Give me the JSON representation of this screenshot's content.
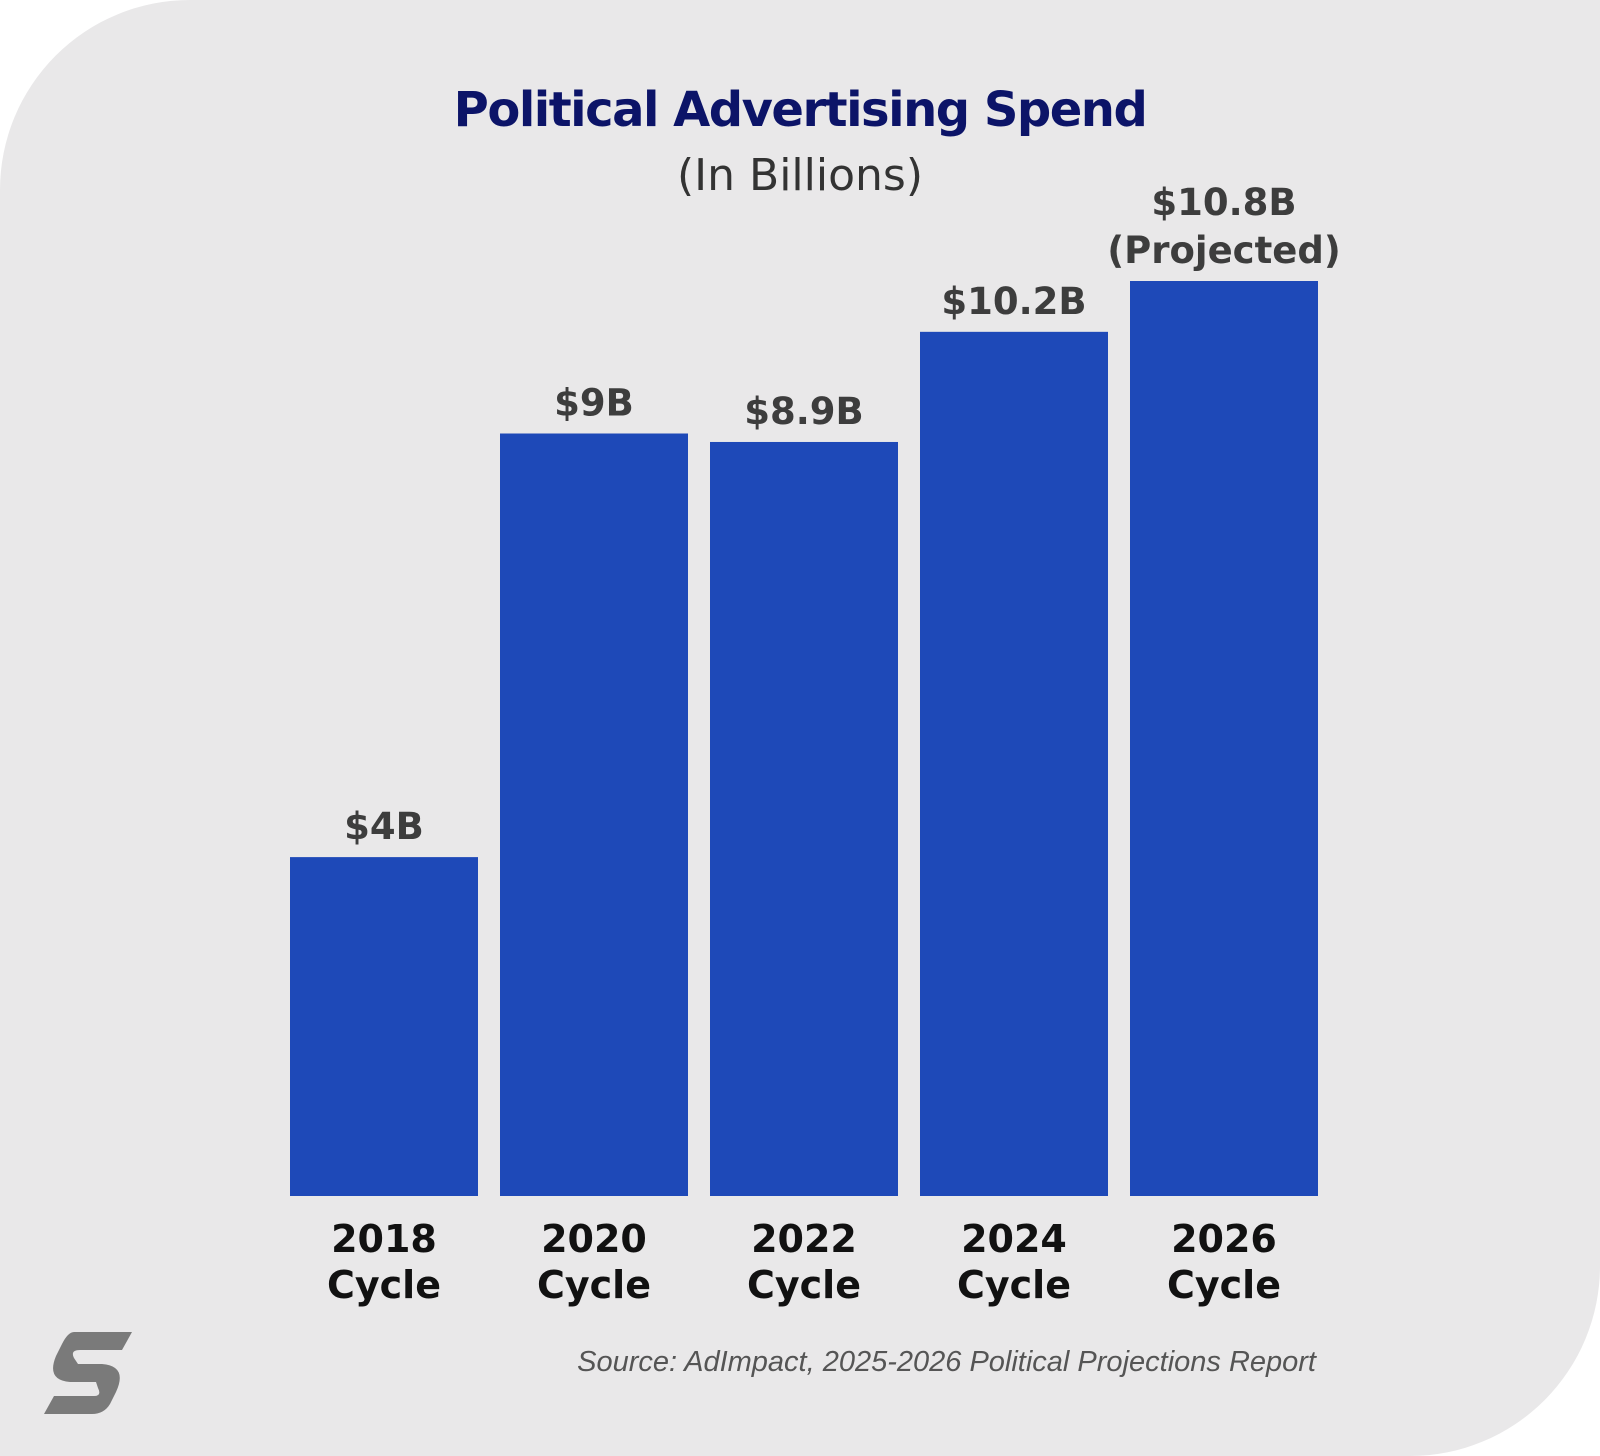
{
  "chart_data": {
    "type": "bar",
    "title": "Political Advertising Spend",
    "subtitle": "(In Billions)",
    "categories": [
      [
        "2018",
        "Cycle"
      ],
      [
        "2020",
        "Cycle"
      ],
      [
        "2022",
        "Cycle"
      ],
      [
        "2024",
        "Cycle"
      ],
      [
        "2026",
        "Cycle"
      ]
    ],
    "values": [
      4,
      9,
      8.9,
      10.2,
      10.8
    ],
    "data_labels": [
      [
        "$4B"
      ],
      [
        "$9B"
      ],
      [
        "$8.9B"
      ],
      [
        "$10.2B"
      ],
      [
        "$10.8B",
        "(Projected)"
      ]
    ],
    "xlabel": "",
    "ylabel": "",
    "ylim": [
      0,
      10.8
    ],
    "grid": false,
    "legend": "none",
    "bar_color": "#1e49b8"
  },
  "source": "Source: AdImpact, 2025-2026 Political Projections Report",
  "logo": {
    "icon": "s-logo-icon",
    "color": "#7a7a7a"
  }
}
